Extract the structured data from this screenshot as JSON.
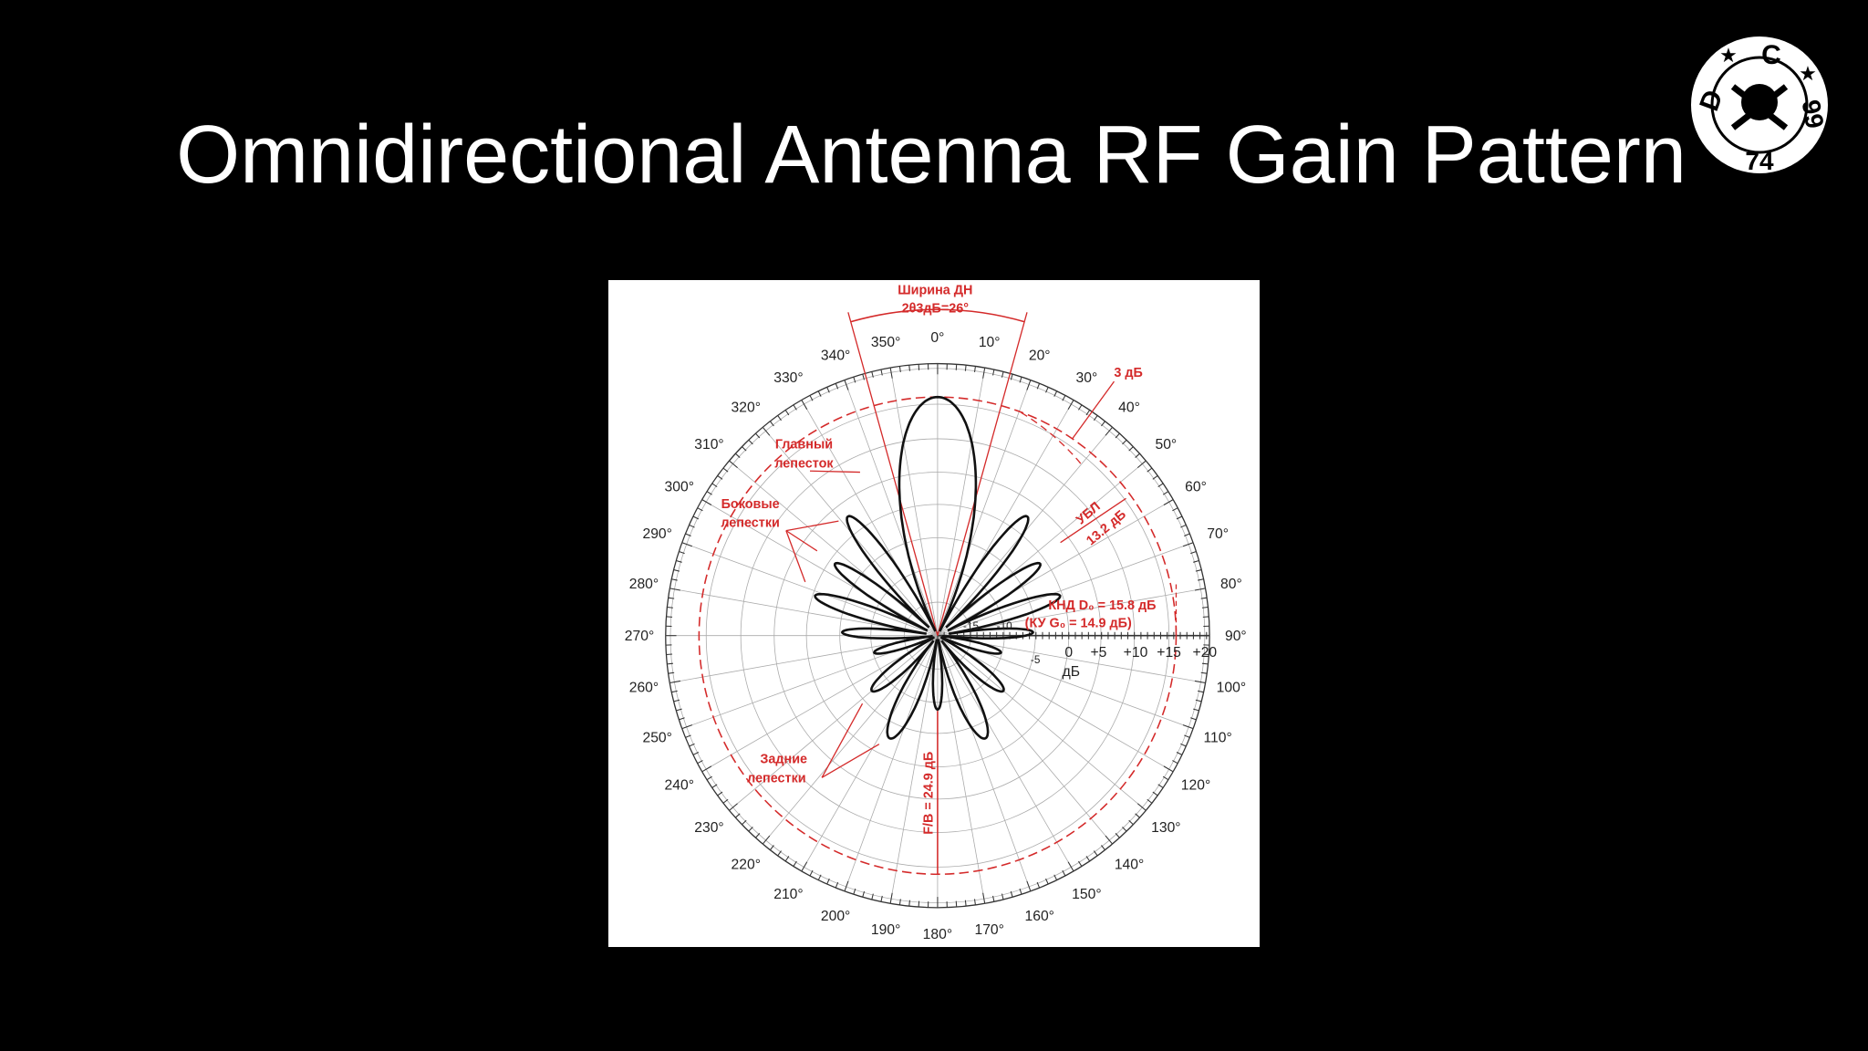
{
  "title": "Omnidirectional Antenna RF Gain Pattern",
  "logo": {
    "letters": [
      "D",
      "C"
    ],
    "numbers": [
      "74",
      "99"
    ]
  },
  "figure": {
    "angle_labels": [
      "0°",
      "10°",
      "20°",
      "30°",
      "40°",
      "50°",
      "60°",
      "70°",
      "80°",
      "90°",
      "100°",
      "110°",
      "120°",
      "130°",
      "140°",
      "150°",
      "160°",
      "170°",
      "180°",
      "190°",
      "200°",
      "210°",
      "220°",
      "230°",
      "240°",
      "250°",
      "260°",
      "270°",
      "280°",
      "290°",
      "300°",
      "310°",
      "320°",
      "330°",
      "340°",
      "350°"
    ],
    "scale_labels": [
      "-15",
      "-10",
      "-5",
      "0",
      "+5",
      "+10",
      "+15",
      "+20"
    ],
    "scale_unit": "дБ",
    "beamwidth": [
      "Ширина ДН",
      "2θ3дБ=26°"
    ],
    "level_3db": "3 дБ",
    "main_lobe": [
      "Главный",
      "лепесток"
    ],
    "side_lobes": [
      "Боковые",
      "лепестки"
    ],
    "side_lobe_level": [
      "УБЛ",
      "13.2 дБ"
    ],
    "directivity": "КНД D₀ = 15.8 дБ",
    "gain": "(КУ G₀ = 14.9 дБ)",
    "back_lobes": [
      "Задние",
      "лепестки"
    ],
    "front_back": "F/B = 24.9 дБ"
  }
}
